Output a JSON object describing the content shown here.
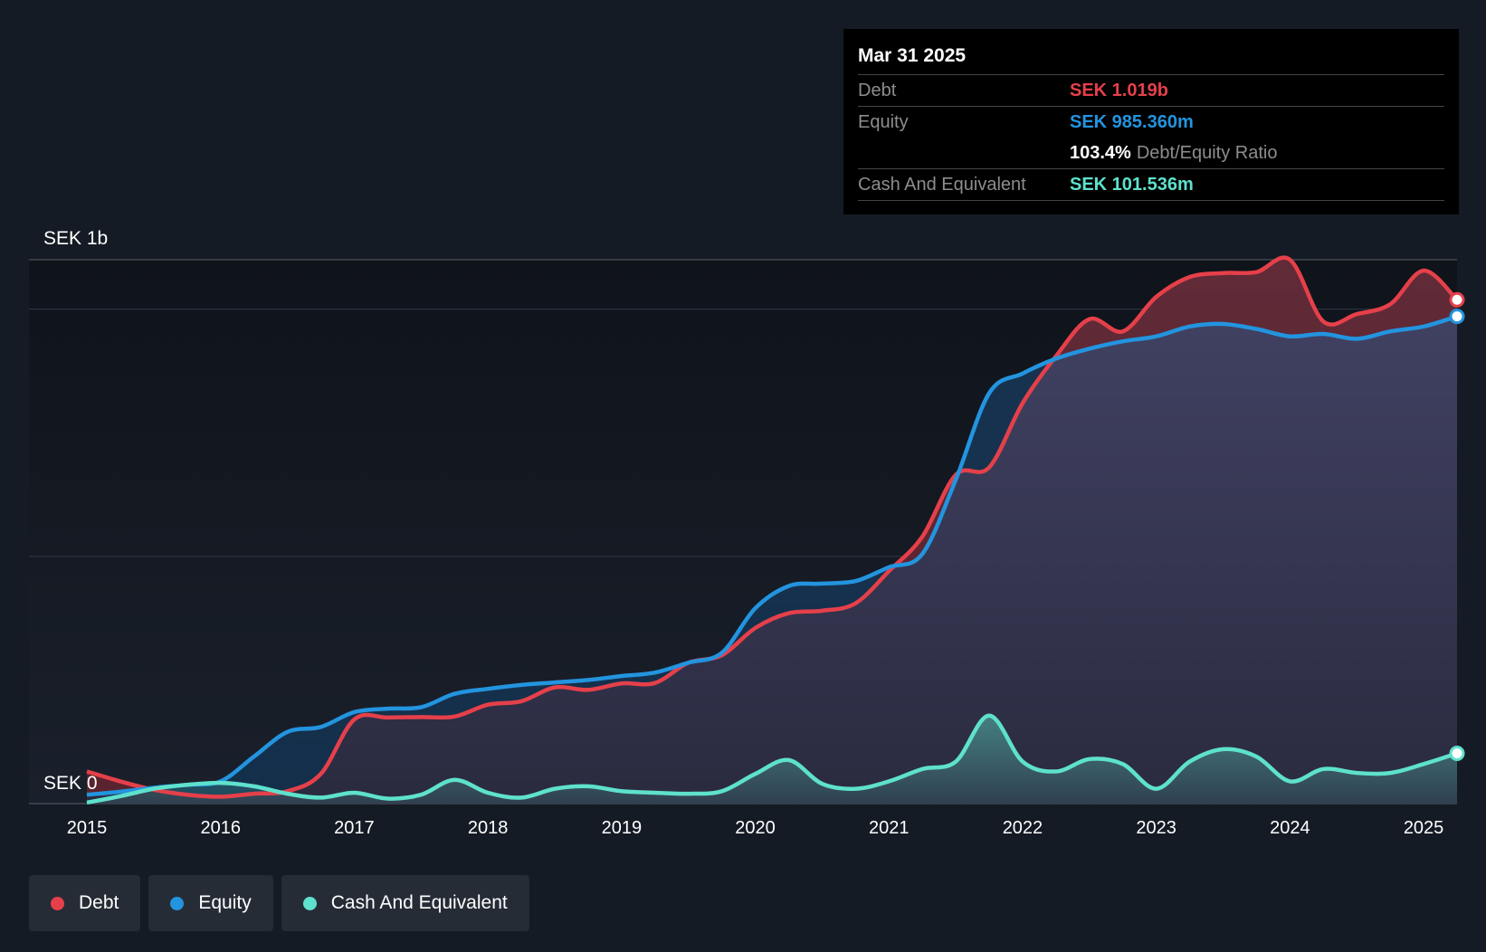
{
  "chart_data": {
    "type": "area",
    "y_top_label": "SEK 1b",
    "y_zero_label": "SEK 0",
    "ylim": [
      0,
      1100
    ],
    "x_range": [
      2015,
      2025.25
    ],
    "x_ticks": [
      "2015",
      "2016",
      "2017",
      "2018",
      "2019",
      "2020",
      "2021",
      "2022",
      "2023",
      "2024",
      "2025"
    ],
    "series": [
      {
        "name": "Debt",
        "color": "#e5404a",
        "points": [
          [
            2015,
            65
          ],
          [
            2015.25,
            45
          ],
          [
            2015.5,
            28
          ],
          [
            2015.75,
            18
          ],
          [
            2016,
            14
          ],
          [
            2016.25,
            20
          ],
          [
            2016.5,
            25
          ],
          [
            2016.75,
            60
          ],
          [
            2017,
            170
          ],
          [
            2017.25,
            174
          ],
          [
            2017.5,
            175
          ],
          [
            2017.75,
            176
          ],
          [
            2018,
            200
          ],
          [
            2018.25,
            207
          ],
          [
            2018.5,
            235
          ],
          [
            2018.75,
            230
          ],
          [
            2019,
            243
          ],
          [
            2019.25,
            244
          ],
          [
            2019.5,
            285
          ],
          [
            2019.75,
            300
          ],
          [
            2020,
            355
          ],
          [
            2020.25,
            385
          ],
          [
            2020.5,
            390
          ],
          [
            2020.75,
            405
          ],
          [
            2021,
            470
          ],
          [
            2021.25,
            540
          ],
          [
            2021.5,
            665
          ],
          [
            2021.75,
            680
          ],
          [
            2022,
            810
          ],
          [
            2022.25,
            905
          ],
          [
            2022.5,
            980
          ],
          [
            2022.75,
            955
          ],
          [
            2023,
            1025
          ],
          [
            2023.25,
            1065
          ],
          [
            2023.5,
            1073
          ],
          [
            2023.75,
            1075
          ],
          [
            2024,
            1100
          ],
          [
            2024.25,
            975
          ],
          [
            2024.5,
            990
          ],
          [
            2024.75,
            1010
          ],
          [
            2025,
            1078
          ],
          [
            2025.25,
            1019
          ]
        ]
      },
      {
        "name": "Equity",
        "color": "#2394df",
        "points": [
          [
            2015,
            18
          ],
          [
            2015.25,
            24
          ],
          [
            2015.5,
            32
          ],
          [
            2015.75,
            38
          ],
          [
            2016,
            45
          ],
          [
            2016.25,
            95
          ],
          [
            2016.5,
            145
          ],
          [
            2016.75,
            155
          ],
          [
            2017,
            185
          ],
          [
            2017.25,
            192
          ],
          [
            2017.5,
            195
          ],
          [
            2017.75,
            222
          ],
          [
            2018,
            232
          ],
          [
            2018.25,
            240
          ],
          [
            2018.5,
            245
          ],
          [
            2018.75,
            250
          ],
          [
            2019,
            258
          ],
          [
            2019.25,
            265
          ],
          [
            2019.5,
            285
          ],
          [
            2019.75,
            305
          ],
          [
            2020,
            395
          ],
          [
            2020.25,
            440
          ],
          [
            2020.5,
            445
          ],
          [
            2020.75,
            450
          ],
          [
            2021,
            478
          ],
          [
            2021.25,
            505
          ],
          [
            2021.5,
            655
          ],
          [
            2021.75,
            830
          ],
          [
            2022,
            870
          ],
          [
            2022.25,
            900
          ],
          [
            2022.5,
            920
          ],
          [
            2022.75,
            935
          ],
          [
            2023,
            945
          ],
          [
            2023.25,
            965
          ],
          [
            2023.5,
            970
          ],
          [
            2023.75,
            960
          ],
          [
            2024,
            945
          ],
          [
            2024.25,
            950
          ],
          [
            2024.5,
            940
          ],
          [
            2024.75,
            955
          ],
          [
            2025,
            965
          ],
          [
            2025.25,
            985.36
          ]
        ]
      },
      {
        "name": "Cash And Equivalent",
        "color": "#5ee1cd",
        "points": [
          [
            2015,
            2
          ],
          [
            2015.25,
            15
          ],
          [
            2015.5,
            30
          ],
          [
            2015.75,
            38
          ],
          [
            2016,
            42
          ],
          [
            2016.25,
            35
          ],
          [
            2016.5,
            20
          ],
          [
            2016.75,
            12
          ],
          [
            2017,
            22
          ],
          [
            2017.25,
            10
          ],
          [
            2017.5,
            18
          ],
          [
            2017.75,
            48
          ],
          [
            2018,
            22
          ],
          [
            2018.25,
            12
          ],
          [
            2018.5,
            30
          ],
          [
            2018.75,
            35
          ],
          [
            2019,
            25
          ],
          [
            2019.25,
            22
          ],
          [
            2019.5,
            20
          ],
          [
            2019.75,
            25
          ],
          [
            2020,
            60
          ],
          [
            2020.25,
            88
          ],
          [
            2020.5,
            40
          ],
          [
            2020.75,
            30
          ],
          [
            2021,
            45
          ],
          [
            2021.25,
            70
          ],
          [
            2021.5,
            85
          ],
          [
            2021.75,
            178
          ],
          [
            2022,
            85
          ],
          [
            2022.25,
            65
          ],
          [
            2022.5,
            90
          ],
          [
            2022.75,
            80
          ],
          [
            2023,
            30
          ],
          [
            2023.25,
            85
          ],
          [
            2023.5,
            110
          ],
          [
            2023.75,
            95
          ],
          [
            2024,
            45
          ],
          [
            2024.25,
            70
          ],
          [
            2024.5,
            62
          ],
          [
            2024.75,
            62
          ],
          [
            2025,
            80
          ],
          [
            2025.25,
            101.536
          ]
        ]
      }
    ]
  },
  "tooltip": {
    "date": "Mar 31 2025",
    "debt_label": "Debt",
    "debt_value": "SEK 1.019b",
    "equity_label": "Equity",
    "equity_value": "SEK 985.360m",
    "ratio_value": "103.4%",
    "ratio_label": "Debt/Equity Ratio",
    "cash_label": "Cash And Equivalent",
    "cash_value": "SEK 101.536m"
  },
  "legend": {
    "debt": "Debt",
    "equity": "Equity",
    "cash": "Cash And Equivalent"
  },
  "colors": {
    "debt": "#e5404a",
    "equity": "#2394df",
    "cash": "#5ee1cd"
  }
}
